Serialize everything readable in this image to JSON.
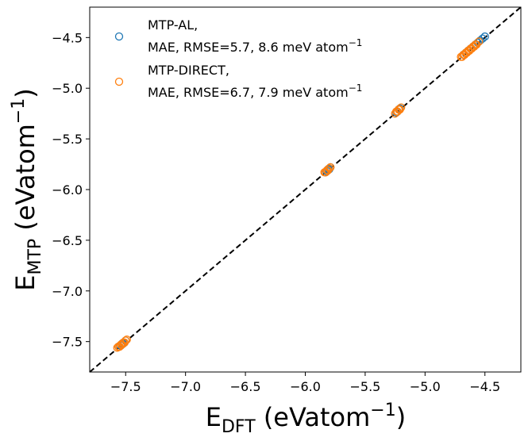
{
  "chart_data": {
    "type": "scatter",
    "xlim": [
      -7.8,
      -4.2
    ],
    "ylim": [
      -7.8,
      -4.2
    ],
    "xticks": [
      -7.5,
      -7.0,
      -6.5,
      -6.0,
      -5.5,
      -5.0,
      -4.5
    ],
    "yticks": [
      -7.5,
      -7.0,
      -6.5,
      -6.0,
      -5.5,
      -5.0,
      -4.5
    ],
    "tick_labels": [
      "−7.5",
      "−7.0",
      "−6.5",
      "−6.0",
      "−5.5",
      "−5.0",
      "−4.5"
    ],
    "xlabel": {
      "main": "E",
      "sub": "DFT",
      "paren": " (eVatom",
      "sup": "−1",
      "close": ")"
    },
    "ylabel": {
      "main": "E",
      "sub": "MTP",
      "paren": " (eVatom",
      "sup": "−1",
      "close": ")"
    },
    "diagonal": {
      "style": "dashed",
      "color": "#000000"
    },
    "legend": {
      "placement": "top-left",
      "entries": [
        {
          "line1": "MTP-AL,",
          "line2": "MAE, RMSE=5.7, 8.6 meV atom",
          "sup": "−1",
          "color": "#1f77b4"
        },
        {
          "line1": "MTP-DIRECT,",
          "line2": "MAE, RMSE=6.7, 7.9 meV atom",
          "sup": "−1",
          "color": "#ff7f0e"
        }
      ]
    },
    "series": [
      {
        "name": "MTP-AL",
        "color": "#1f77b4",
        "marker": "open-circle",
        "x": [
          -7.56,
          -7.54,
          -7.53,
          -7.52,
          -7.51,
          -7.5,
          -5.83,
          -5.82,
          -5.81,
          -5.8,
          -5.79,
          -5.24,
          -5.23,
          -5.22,
          -5.21,
          -4.68,
          -4.66,
          -4.64,
          -4.62,
          -4.6,
          -4.58,
          -4.56,
          -4.54,
          -4.52,
          -4.5
        ],
        "y": [
          -7.55,
          -7.54,
          -7.52,
          -7.52,
          -7.51,
          -7.49,
          -5.83,
          -5.82,
          -5.8,
          -5.8,
          -5.78,
          -5.24,
          -5.23,
          -5.21,
          -5.2,
          -4.67,
          -4.65,
          -4.63,
          -4.61,
          -4.59,
          -4.57,
          -4.55,
          -4.53,
          -4.51,
          -4.49
        ]
      },
      {
        "name": "MTP-DIRECT",
        "color": "#ff7f0e",
        "marker": "open-circle",
        "x": [
          -7.57,
          -7.56,
          -7.55,
          -7.54,
          -7.53,
          -7.52,
          -7.51,
          -7.5,
          -7.49,
          -5.84,
          -5.83,
          -5.82,
          -5.81,
          -5.8,
          -5.79,
          -5.25,
          -5.24,
          -5.23,
          -5.22,
          -5.21,
          -5.2,
          -4.7,
          -4.69,
          -4.68,
          -4.67,
          -4.66,
          -4.65,
          -4.64,
          -4.63,
          -4.62,
          -4.61,
          -4.6,
          -4.59,
          -4.58,
          -4.57,
          -4.55
        ],
        "y": [
          -7.56,
          -7.55,
          -7.55,
          -7.53,
          -7.53,
          -7.51,
          -7.51,
          -7.49,
          -7.48,
          -5.83,
          -5.83,
          -5.81,
          -5.81,
          -5.79,
          -5.78,
          -5.25,
          -5.23,
          -5.23,
          -5.21,
          -5.21,
          -5.19,
          -4.69,
          -4.69,
          -4.67,
          -4.67,
          -4.65,
          -4.65,
          -4.63,
          -4.63,
          -4.61,
          -4.61,
          -4.59,
          -4.59,
          -4.57,
          -4.57,
          -4.54
        ]
      }
    ]
  }
}
